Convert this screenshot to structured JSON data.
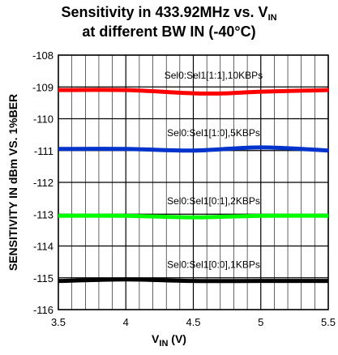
{
  "title_line1_main": "Sensitivity in 433.92MHz vs. V",
  "title_line1_sub": "IN",
  "title_line2": "at different BW IN (-40°C)",
  "xlabel_main": "V",
  "xlabel_sub": "IN",
  "xlabel_unit": " (V)",
  "ylabel": "SENSITIVITY IN dBm VS. 1%BER",
  "chart_data": {
    "type": "line",
    "title": "Sensitivity in 433.92MHz vs. VIN at different BW IN (-40°C)",
    "xlabel": "VIN (V)",
    "ylabel": "SENSITIVITY IN dBm VS. 1%BER",
    "xlim": [
      3.5,
      5.5
    ],
    "ylim": [
      -116,
      -108
    ],
    "xticks": [
      3.5,
      4,
      4.5,
      5,
      5.5
    ],
    "xtick_labels": [
      "3.5",
      "4",
      "4.5",
      "5",
      "5.5"
    ],
    "yticks": [
      -108,
      -109,
      -110,
      -111,
      -112,
      -113,
      -114,
      -115,
      -116
    ],
    "ytick_labels": [
      "-108",
      "-109",
      "-110",
      "-111",
      "-112",
      "-113",
      "-114",
      "-115",
      "-116"
    ],
    "grid": true,
    "series": [
      {
        "name": "Sel0:Sel1[1:1],10KBPs",
        "color": "#ff0000",
        "x": [
          3.5,
          4.0,
          4.5,
          4.75,
          5.0,
          5.5
        ],
        "y": [
          -109.1,
          -109.1,
          -109.2,
          -109.2,
          -109.15,
          -109.1
        ]
      },
      {
        "name": "Sel0:Sel1[1:0],5KBPs",
        "color": "#0033cc",
        "x": [
          3.5,
          4.0,
          4.5,
          5.0,
          5.5
        ],
        "y": [
          -110.95,
          -110.95,
          -111.0,
          -110.9,
          -111.0
        ]
      },
      {
        "name": "Sel0:Sel1[0:1],2KBPs",
        "color": "#00ff00",
        "x": [
          3.5,
          4.0,
          4.5,
          5.0,
          5.5
        ],
        "y": [
          -113.05,
          -113.05,
          -113.1,
          -113.05,
          -113.05
        ]
      },
      {
        "name": "Sel0:Sel1[0:0],1KBPs",
        "color": "#000000",
        "x": [
          3.5,
          4.0,
          4.5,
          5.0,
          5.5
        ],
        "y": [
          -115.1,
          -115.05,
          -115.1,
          -115.1,
          -115.1
        ]
      }
    ]
  }
}
